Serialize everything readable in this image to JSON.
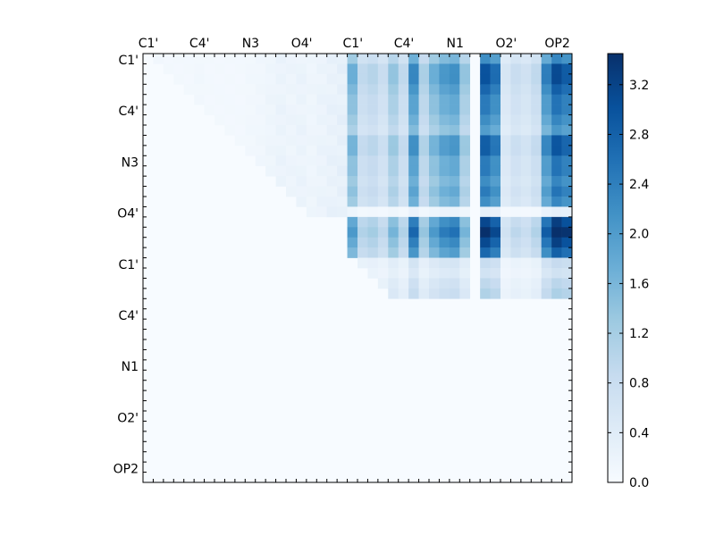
{
  "chart_data": {
    "type": "heatmap",
    "title": "",
    "xlabel": "",
    "ylabel": "",
    "x_tick_labels": [
      "C1'",
      "C4'",
      "N3",
      "O4'",
      "C1'",
      "C4'",
      "N1",
      "O2'",
      "OP2"
    ],
    "y_tick_labels": [
      "C1'",
      "C4'",
      "N3",
      "O4'",
      "C1'",
      "C4'",
      "N1",
      "O2'",
      "OP2"
    ],
    "x_ticks_position": "top",
    "colorbar": {
      "range": [
        0.0,
        3.45
      ],
      "tick_labels": [
        "0.0",
        "0.4",
        "0.8",
        "1.2",
        "1.6",
        "2.0",
        "2.4",
        "2.8",
        "3.2"
      ],
      "tick_values": [
        0.0,
        0.4,
        0.8,
        1.2,
        1.6,
        2.0,
        2.4,
        2.8,
        3.2
      ],
      "colormap": "Blues",
      "colors": [
        "#f7fbff",
        "#deebf7",
        "#c6dbef",
        "#9ecae1",
        "#6baed6",
        "#4292c6",
        "#2171b5",
        "#08519c",
        "#08306b"
      ]
    },
    "matrix_size": 42,
    "col_profile": [
      0.1,
      0.15,
      0.1,
      0.1,
      0.1,
      0.15,
      0.1,
      0.1,
      0.1,
      0.1,
      0.15,
      0.2,
      0.3,
      0.4,
      0.35,
      0.4,
      0.3,
      0.4,
      0.5,
      0.6,
      1.5,
      0.8,
      0.9,
      0.7,
      1.2,
      0.8,
      2.0,
      1.0,
      1.5,
      1.8,
      1.9,
      1.2,
      0.0,
      2.6,
      2.3,
      0.5,
      0.7,
      0.6,
      0.8,
      2.1,
      2.7,
      2.5
    ],
    "row_profile": [
      1.0,
      1.0,
      1.05,
      1.0,
      0.95,
      1.0,
      0.95,
      0.9,
      0.95,
      1.0,
      0.9,
      0.95,
      0.9,
      1.05,
      1.0,
      0.1,
      1.1,
      1.3,
      1.2,
      1.1,
      1.0,
      0.85,
      0.9,
      1.1
    ],
    "base": 0.04
  }
}
